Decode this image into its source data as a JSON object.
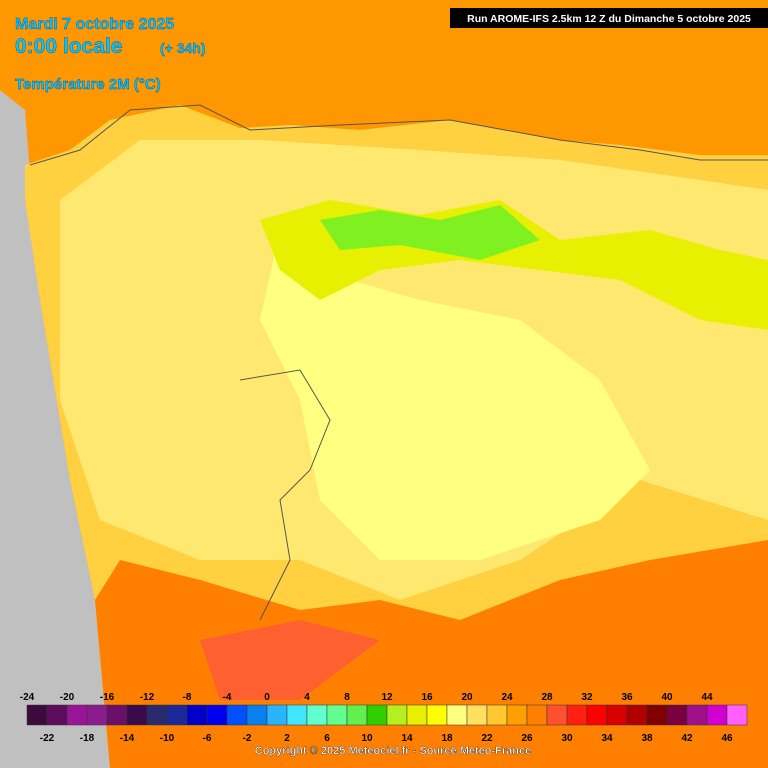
{
  "header": {
    "date": "Mardi 7 octobre 2025",
    "time": "0:00 locale",
    "lead": "(+ 34h)",
    "variable": "Température 2M (°C)",
    "run": "Run AROME-IFS 2.5km 12 Z du Dimanche 5 octobre 2025"
  },
  "legend": {
    "scale": [
      {
        "value": -24,
        "color": "#3c0a3c"
      },
      {
        "value": -22,
        "color": "#5c0c5c"
      },
      {
        "value": -20,
        "color": "#9a149a"
      },
      {
        "value": -18,
        "color": "#8c1c8c"
      },
      {
        "value": -16,
        "color": "#6a106a"
      },
      {
        "value": -14,
        "color": "#3a0a4a"
      },
      {
        "value": -12,
        "color": "#2a2a6e"
      },
      {
        "value": -10,
        "color": "#1a2a9a"
      },
      {
        "value": -8,
        "color": "#0000c8"
      },
      {
        "value": -6,
        "color": "#0000f0"
      },
      {
        "value": -4,
        "color": "#0050ff"
      },
      {
        "value": -2,
        "color": "#0a80f0"
      },
      {
        "value": 0,
        "color": "#28b4ff"
      },
      {
        "value": 2,
        "color": "#40e6ff"
      },
      {
        "value": 4,
        "color": "#60ffd0"
      },
      {
        "value": 6,
        "color": "#60ff90"
      },
      {
        "value": 8,
        "color": "#60f050"
      },
      {
        "value": 10,
        "color": "#30d000"
      },
      {
        "value": 12,
        "color": "#b4f020"
      },
      {
        "value": 14,
        "color": "#e6f000"
      },
      {
        "value": 16,
        "color": "#ffff00"
      },
      {
        "value": 18,
        "color": "#ffff80"
      },
      {
        "value": 20,
        "color": "#ffe060"
      },
      {
        "value": 22,
        "color": "#ffc830"
      },
      {
        "value": 24,
        "color": "#ffa000"
      },
      {
        "value": 26,
        "color": "#ff8000"
      },
      {
        "value": 28,
        "color": "#ff5030"
      },
      {
        "value": 30,
        "color": "#ff2010"
      },
      {
        "value": 32,
        "color": "#ff0000"
      },
      {
        "value": 34,
        "color": "#d80000"
      },
      {
        "value": 36,
        "color": "#b00000"
      },
      {
        "value": 38,
        "color": "#800000"
      },
      {
        "value": 40,
        "color": "#7a0040"
      },
      {
        "value": 42,
        "color": "#a0108a"
      },
      {
        "value": 44,
        "color": "#d000d0"
      },
      {
        "value": 46,
        "color": "#ff60ff"
      }
    ]
  },
  "footer": {
    "copyright": "Copyright © 2025 Meteociel.fr - Source Meteo-France"
  }
}
